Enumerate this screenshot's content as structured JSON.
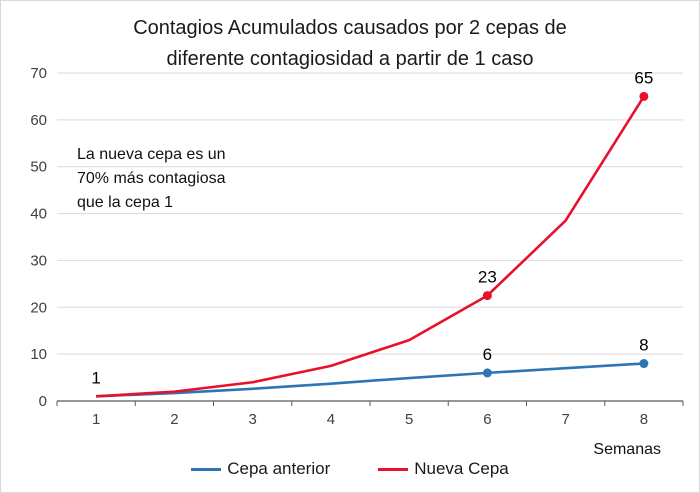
{
  "title": "Contagios Acumulados causados por 2 cepas de\ndiferente contagiosidad a partir de 1 caso",
  "annotation": "La nueva cepa es un\n70% más contagiosa\nque la cepa 1",
  "chart_data": {
    "type": "line",
    "title": "Contagios Acumulados causados por 2 cepas de diferente contagiosidad a partir de 1 caso",
    "categories": [
      "1",
      "2",
      "3",
      "4",
      "5",
      "6",
      "7",
      "8"
    ],
    "xlabel": "Semanas",
    "ylabel": "",
    "ylim": [
      0,
      70
    ],
    "ytick_step": 10,
    "grid": true,
    "legend_position": "bottom",
    "series": [
      {
        "name": "Cepa anterior",
        "color": "#2E75B6",
        "values": [
          1,
          1.7,
          2.6,
          3.7,
          4.9,
          6,
          7,
          8
        ],
        "marker_indices": [
          5,
          7
        ],
        "point_labels": {
          "0": "1",
          "5": "6",
          "7": "8"
        }
      },
      {
        "name": "Nueva Cepa",
        "color": "#E8112D",
        "values": [
          1,
          2,
          4,
          7.5,
          13,
          22.5,
          38.5,
          65
        ],
        "marker_indices": [
          5,
          7
        ],
        "point_labels": {
          "5": "23",
          "7": "65"
        }
      }
    ],
    "colors": {
      "gridline": "#d9d9d9",
      "axis": "#595959",
      "tick_label": "#404040",
      "point_label": "#000000"
    }
  }
}
